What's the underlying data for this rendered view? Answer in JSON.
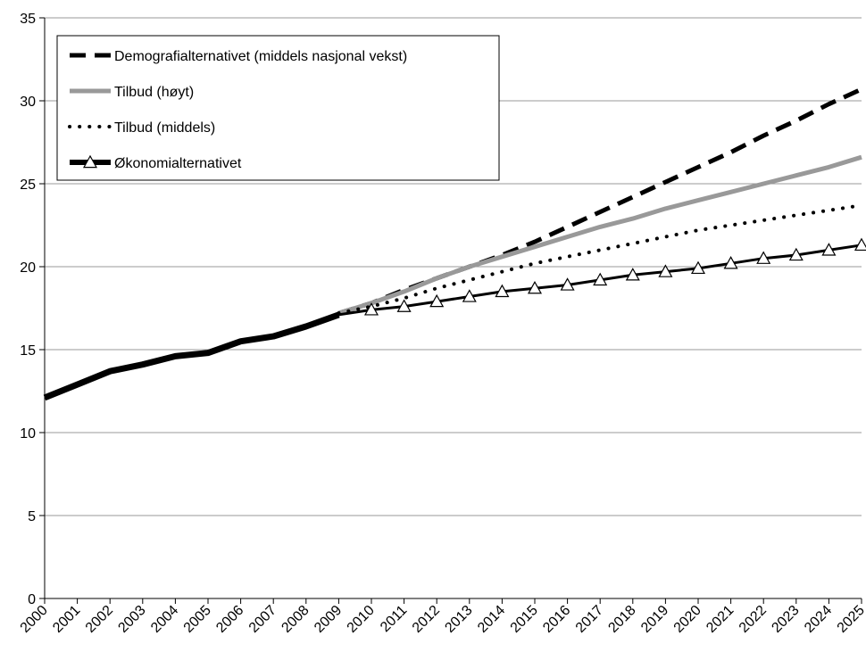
{
  "chart_data": {
    "type": "line",
    "title": "",
    "xlabel": "",
    "ylabel": "",
    "ylim": [
      0,
      35
    ],
    "yticks": [
      0,
      5,
      10,
      15,
      20,
      25,
      30,
      35
    ],
    "grid": "horizontal",
    "legend_position": "top-left",
    "x": [
      "2000",
      "2001",
      "2002",
      "2003",
      "2004",
      "2005",
      "2006",
      "2007",
      "2008",
      "2009",
      "2010",
      "2011",
      "2012",
      "2013",
      "2014",
      "2015",
      "2016",
      "2017",
      "2018",
      "2019",
      "2020",
      "2021",
      "2022",
      "2023",
      "2024",
      "2025"
    ],
    "series": [
      {
        "name": "Demografialternativet (middels nasjonal vekst)",
        "style": "dashed",
        "color": "#000000",
        "values": [
          null,
          null,
          null,
          null,
          null,
          null,
          null,
          null,
          null,
          17.2,
          17.8,
          18.6,
          19.3,
          20.0,
          20.7,
          21.5,
          22.4,
          23.3,
          24.2,
          25.1,
          26.0,
          26.9,
          27.9,
          28.8,
          29.8,
          30.7
        ]
      },
      {
        "name": "Tilbud (høyt)",
        "style": "solid",
        "color": "#999999",
        "values": [
          null,
          null,
          null,
          null,
          null,
          null,
          null,
          null,
          null,
          17.2,
          17.8,
          18.5,
          19.3,
          20.0,
          20.6,
          21.2,
          21.8,
          22.4,
          22.9,
          23.5,
          24.0,
          24.5,
          25.0,
          25.5,
          26.0,
          26.6
        ]
      },
      {
        "name": "Tilbud (middels)",
        "style": "dotted",
        "color": "#000000",
        "values": [
          null,
          null,
          null,
          null,
          null,
          null,
          null,
          null,
          null,
          17.2,
          17.6,
          18.1,
          18.7,
          19.2,
          19.7,
          20.2,
          20.6,
          21.0,
          21.4,
          21.8,
          22.2,
          22.5,
          22.8,
          23.1,
          23.4,
          23.7
        ]
      },
      {
        "name": "Økonomialternativet",
        "style": "solid-triangle-markers",
        "color": "#000000",
        "values": [
          12.1,
          12.9,
          13.7,
          14.1,
          14.6,
          14.8,
          15.5,
          15.8,
          16.4,
          17.1,
          17.4,
          17.6,
          17.9,
          18.2,
          18.5,
          18.7,
          18.9,
          19.2,
          19.5,
          19.7,
          19.9,
          20.2,
          20.5,
          20.7,
          21.0,
          21.3
        ]
      }
    ]
  }
}
